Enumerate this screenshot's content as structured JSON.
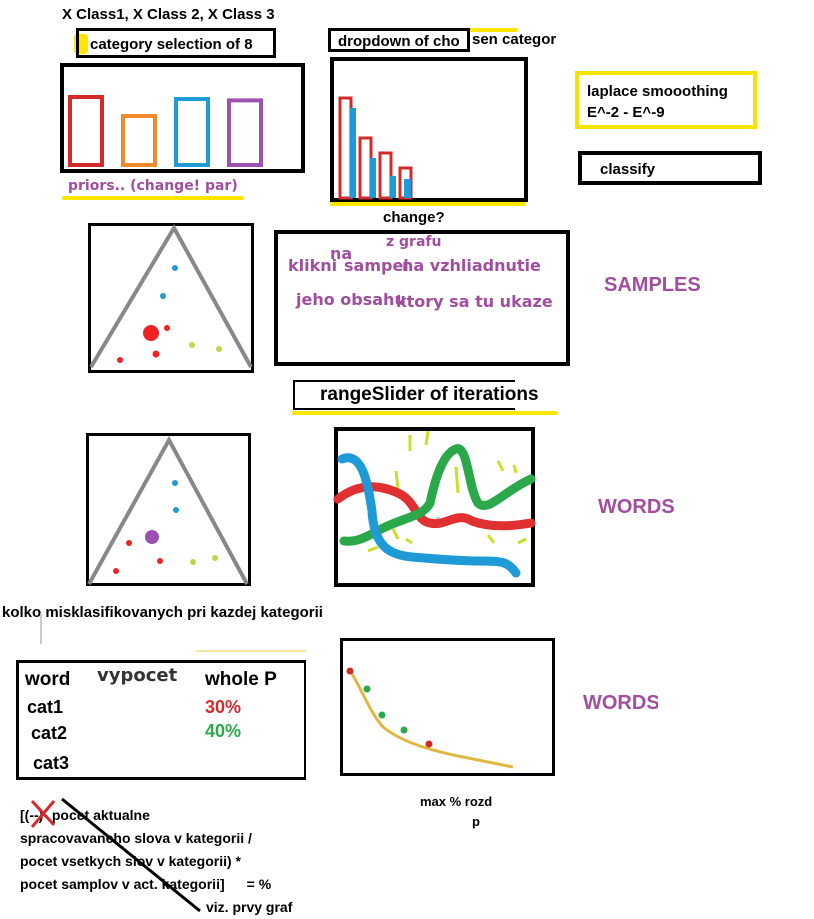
{
  "header": {
    "classes_text": "X Class1, X Class 2, X Class 3",
    "category_selection": "category selection of 8",
    "dropdown_text_a": "dropdown of cho",
    "dropdown_text_b": "sen categor"
  },
  "priors": {
    "label": "priors.. (change! par)",
    "bars": [
      {
        "name": "red",
        "color": "#d42a2a",
        "value": 1.0
      },
      {
        "name": "orange",
        "color": "#f08a2a",
        "value": 0.72
      },
      {
        "name": "blue",
        "color": "#1e9ad6",
        "value": 0.97
      },
      {
        "name": "purple",
        "color": "#9c50b0",
        "value": 0.95
      }
    ]
  },
  "dropdown_chart": {
    "change_label": "change?",
    "values": [
      {
        "red": 1.0,
        "blue": 0.9
      },
      {
        "red": 0.6,
        "blue": 0.4
      },
      {
        "red": 0.45,
        "blue": 0.22
      },
      {
        "red": 0.3,
        "blue": 0.0
      }
    ],
    "colors": {
      "red": "#d42a2a",
      "blue": "#1e9ad6"
    }
  },
  "laplace": {
    "line1": "laplace smooothing",
    "line2": "E^-2 - E^-9"
  },
  "classify": {
    "label": "classify"
  },
  "samples_note": {
    "w_klikni": "klikni",
    "w_na1": "na",
    "w_sampel": "sampel",
    "w_zgrafu": "z grafu",
    "w_na2": "na vzhliadnutie",
    "w_jeho": "jeho obsahu",
    "w_ktory": "ktory sa tu ukaze"
  },
  "labels": {
    "samples": "SAMPLES",
    "words1": "WORDS",
    "words2": "WORDS"
  },
  "range_slider": {
    "label": "rangeSlider of iterations"
  },
  "misclassified": {
    "title": "kolko misklasifikovanych pri kazdej kategorii"
  },
  "table": {
    "headers": {
      "word": "word",
      "vypocet": "vypocet",
      "whole": "whole P"
    },
    "rows": [
      {
        "name": "cat1",
        "value": "30%",
        "color": "#d42a2a"
      },
      {
        "name": "cat2",
        "value": "40%",
        "color": "#2aa84a"
      },
      {
        "name": "cat3",
        "value": ""
      }
    ]
  },
  "maxrozd": {
    "line1": "max % rozd",
    "line2": "p"
  },
  "formula": {
    "line1_prefix": "[(--)",
    "line1": "- pocet aktualne",
    "line2": "spracovavaneho slova v kategorii /",
    "line3": "pocet vsetkych slov v kategorii) *",
    "line4": "pocet samplov v act. kategorii]",
    "line4_suffix": "= %",
    "line5": "viz. prvy graf"
  }
}
